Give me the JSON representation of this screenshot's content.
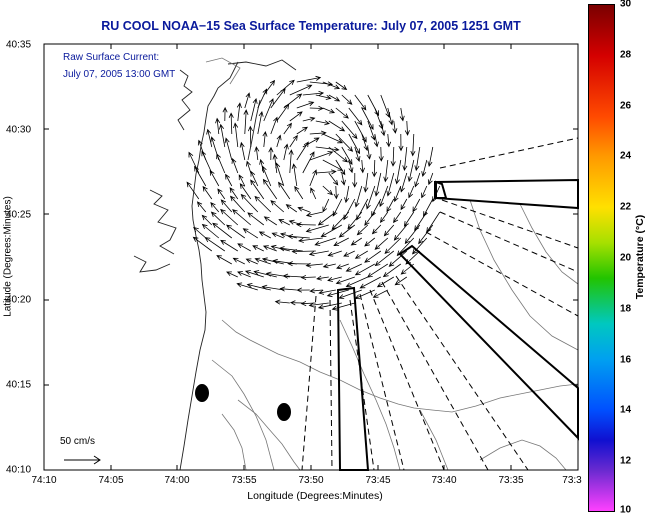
{
  "title": "RU COOL  NOAA−15  Sea Surface Temperature:  July 07, 2005 1251 GMT",
  "legend": {
    "line1": "Raw Surface Current:",
    "line2": "July 07, 2005 13:00 GMT"
  },
  "axes": {
    "xlabel": "Longitude (Degrees:Minutes)",
    "ylabel": "Latitude (Degrees:Minutes)",
    "xticks": [
      "74:10",
      "74:05",
      "74:00",
      "73:55",
      "73:50",
      "73:45",
      "73:40",
      "73:35",
      "73:3"
    ],
    "yticks": [
      "40:35",
      "40:30",
      "40:25",
      "40:20",
      "40:15",
      "40:10"
    ]
  },
  "colorbar": {
    "label": "Temperature (°C)",
    "ticks": [
      "30",
      "28",
      "26",
      "24",
      "22",
      "20",
      "18",
      "16",
      "14",
      "12",
      "10"
    ],
    "range": [
      10,
      30
    ]
  },
  "scale_label": "50 cm/s",
  "colors": {
    "title_text": "#0a1a9c",
    "background": "#ffffff",
    "arrows": "#000000"
  },
  "icons": {
    "station_marker": "black-ellipse",
    "current_vector": "arrow"
  }
}
